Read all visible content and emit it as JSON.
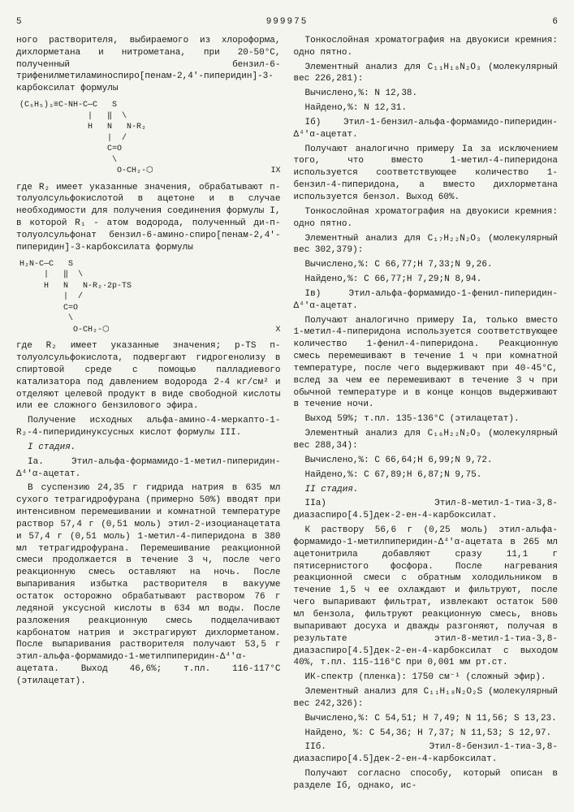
{
  "header": {
    "left_page": "5",
    "patent_number": "999975",
    "right_page": "6"
  },
  "left_column": {
    "p1": "ного растворителя, выбираемого из хлороформа, дихлорметана и нитрометана, при 20-50°С, полученный бензил-6-трифенилметиламиноспиро[пенам-2,4'-пиперидин]-3-карбоксилат формулы",
    "formula1_label": "IX",
    "formula1": "(C₆H₅)₃≡C-NH-C—C   S\n              |   ‖  \\\n              H   N   N-R₂\n                  |  /\n                  C=O\n                   \\\n                    O-CH₂-⬡",
    "p2": "где R₂ имеет указанные значения, обрабатывают п-толуолсульфокислотой в ацетоне и в случае необходимости для получения соединения формулы I, в которой R₁ - атом водорода, полученный ди-п-толуолсульфонат бензил-6-амино-спиро[пенам-2,4'-пиперидин]-3-карбоксилата формулы",
    "formula2_label": "X",
    "formula2": "H₂N-C—C   S\n     |   ‖  \\\n     H   N   N-R₂·2p-TS\n         |  /\n         C=O\n          \\\n           O-CH₂-⬡",
    "p3": "где R₂ имеет указанные значения; p-TS п-толуолсульфокислота, подвергают гидрогенолизу в спиртовой среде с помощью палладиевого катализатора под давлением водорода 2-4 кг/см² и отделяют целевой продукт в виде свободной кислоты или ее сложного бензилового эфира.",
    "p4": "Получение исходных альфа-амино-4-меркапто-1-R₂-4-пиперидинуксусных кислот формулы III.",
    "p5_label": "I стадия.",
    "p5": "Iа. Этил-альфа-формамидо-1-метил-пиперидин-Δ⁴'α-ацетат.",
    "p6": "В суспензию 24,35 г гидрида натрия в 635 мл сухого тетрагидрофурана (примерно 50%) вводят при интенсивном перемешивании и комнатной температуре раствор 57,4 г (0,51 моль) этил-2-изоцианацетата и 57,4 г (0,51 моль) 1-метил-4-пиперидона в 380 мл тетрагидрофурана. Перемешивание реакционной смеси продолжается в течение 3 ч, после чего реакционную смесь оставляют на ночь. После выпаривания избытка растворителя в вакууме остаток осторожно обрабатывают раствором 76 г ледяной уксусной кислоты в 634 мл воды. После разложения реакционную смесь подщелачивают карбонатом натрия и экстрагируют дихлорметаном. После выпаривания растворителя получают 53,5 г этил-альфа-формамидо-1-метилпиперидин-Δ⁴'α-ацетата. Выход 46,6%; т.пл. 116-117°С (этилацетат)."
  },
  "right_column": {
    "p1": "Тонкослойная хроматография на двуокиси кремния: одно пятно.",
    "p2": "Элементный анализ для C₁₁H₁₈N₂O₃ (молекулярный вес 226,281):",
    "p3": "Вычислено,%: N 12,38.",
    "p4": "Найдено,%: N 12,31.",
    "p5": "Iб) Этил-1-бензил-альфа-формамидо-пиперидин-Δ⁴'α-ацетат.",
    "p6": "Получают аналогично примеру Iа за исключением того, что вместо 1-метил-4-пиперидона используется соответствующее количество 1-бензил-4-пиперидона, а вместо дихлорметана используется бензол. Выход 60%.",
    "p7": "Тонкослойная хроматография на двуокиси кремния: одно пятно.",
    "p8": "Элементный анализ для C₁₇H₂₂N₂O₃ (молекулярный вес 302,379):",
    "p9": "Вычислено,%: С 66,77;Н 7,33;N 9,26.",
    "p10": "Найдено,%: С 66,77;Н 7,29;N 8,94.",
    "p11": "Iв) Этил-альфа-формамидо-1-фенил-пиперидин-Δ⁴'α-ацетат.",
    "p12": "Получают аналогично примеру Iа, только вместо 1-метил-4-пиперидона используется соответствующее количество 1-фенил-4-пиперидона. Реакционную смесь перемешивают в течение 1 ч при комнатной температуре, после чего выдерживают при 40-45°С, вслед за чем ее перемешивают в течение 3 ч при обычной температуре и в конце концов выдерживают в течение ночи.",
    "p13": "Выход 59%; т.пл. 135-136°С (этилацетат).",
    "p14": "Элементный анализ для C₁₆H₂₂N₂O₃ (молекулярный вес 288,34):",
    "p15": "Вычислено,%: С 66,64;Н 6,99;N 9,72.",
    "p16": "Найдено,%: С 67,89;Н 6,87;N 9,75.",
    "p17_label": "II стадия.",
    "p17": "IIа) Этил-8-метил-1-тиа-3,8-диазаспиро[4.5]дек-2-ен-4-карбоксилат.",
    "p18": "К раствору 56,6 г (0,25 моль) этил-альфа-формамидо-1-метилпиперидин-Δ⁴'α-ацетата в 265 мл ацетонитрила добавляют сразу 11,1 г пятисернистого фосфора. После нагревания реакционной смеси с обратным холодильником в течение 1,5 ч ее охлаждают и фильтруют, после чего выпаривают фильтрат, извлекают остаток 500 мл бензола, фильтруют реакционную смесь, вновь выпаривают досуха и дважды разгоняют, получая в результате этил-8-метил-1-тиа-3,8-диазаспиро[4.5]дек-2-ен-4-карбоксилат с выходом 40%, т.пл. 115-116°С при 0,001 мм рт.ст.",
    "p19": "ИК-спектр (пленка): 1750 см⁻¹ (сложный эфир).",
    "p20": "Элементный анализ для C₁₁H₁₈N₂O₂S (молекулярный вес 242,326):",
    "p21": "Вычислено,%: С 54,51; Н 7,49; N 11,56; S 13,23.",
    "p22": "Найдено, %: С 54,36; Н 7,37; N 11,53; S 12,97.",
    "p23": "IIб. Этил-8-бензил-1-тиа-3,8-диазаспиро[4.5]дек-2-ен-4-карбоксилат.",
    "p24": "Получают согласно способу, который описан в разделе Iб, однако, ис-"
  },
  "line_numbers": [
    "5",
    "10",
    "15",
    "20",
    "25",
    "30",
    "35",
    "40",
    "45",
    "50",
    "55",
    "60",
    "65"
  ]
}
